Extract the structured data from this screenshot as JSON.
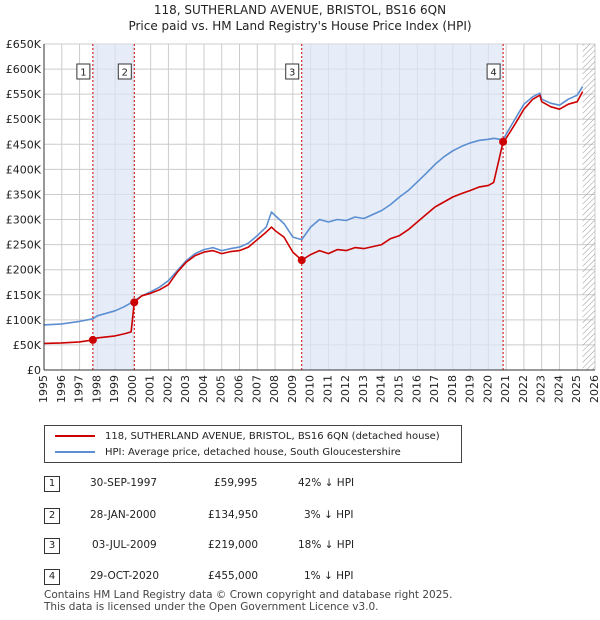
{
  "title_line1": "118, SUTHERLAND AVENUE, BRISTOL, BS16 6QN",
  "title_line2": "Price paid vs. HM Land Registry's House Price Index (HPI)",
  "colors": {
    "property": "#cc0000",
    "hpi": "#5b8fd1",
    "marker": "#cc0000",
    "shade": "#dde6f5",
    "grid": "#cccccc",
    "vline": "#cc0000"
  },
  "legend": {
    "property_label": "118, SUTHERLAND AVENUE, BRISTOL, BS16 6QN (detached house)",
    "hpi_label": "HPI: Average price, detached house, South Gloucestershire"
  },
  "sales": [
    {
      "num": "1",
      "date": "30-SEP-1997",
      "price": "£59,995",
      "hpi": "42% ↓ HPI"
    },
    {
      "num": "2",
      "date": "28-JAN-2000",
      "price": "£134,950",
      "hpi": "3% ↓ HPI"
    },
    {
      "num": "3",
      "date": "03-JUL-2009",
      "price": "£219,000",
      "hpi": "18% ↓ HPI"
    },
    {
      "num": "4",
      "date": "29-OCT-2020",
      "price": "£455,000",
      "hpi": "1% ↓ HPI"
    }
  ],
  "footer_line1": "Contains HM Land Registry data © Crown copyright and database right 2025.",
  "footer_line2": "This data is licensed under the Open Government Licence v3.0.",
  "chart_data": {
    "type": "line",
    "title": "118, SUTHERLAND AVENUE, BRISTOL, BS16 6QN",
    "subtitle": "Price paid vs. HM Land Registry's House Price Index (HPI)",
    "xlabel": "",
    "ylabel": "",
    "xlim": [
      1995,
      2026
    ],
    "ylim": [
      0,
      650000
    ],
    "y_ticks": [
      0,
      50000,
      100000,
      150000,
      200000,
      250000,
      300000,
      350000,
      400000,
      450000,
      500000,
      550000,
      600000,
      650000
    ],
    "y_tick_labels": [
      "£0",
      "£50K",
      "£100K",
      "£150K",
      "£200K",
      "£250K",
      "£300K",
      "£350K",
      "£400K",
      "£450K",
      "£500K",
      "£550K",
      "£600K",
      "£650K"
    ],
    "x_ticks": [
      1995,
      1996,
      1997,
      1998,
      1999,
      2000,
      2001,
      2002,
      2003,
      2004,
      2005,
      2006,
      2007,
      2008,
      2009,
      2010,
      2011,
      2012,
      2013,
      2014,
      2015,
      2016,
      2017,
      2018,
      2019,
      2020,
      2021,
      2022,
      2023,
      2024,
      2025,
      2026
    ],
    "x_tick_labels": [
      "1995",
      "1996",
      "1997",
      "1998",
      "1999",
      "2000",
      "2001",
      "2002",
      "2003",
      "2004",
      "2005",
      "2006",
      "2007",
      "2008",
      "2009",
      "2010",
      "2011",
      "2012",
      "2013",
      "2014",
      "2015",
      "2016",
      "2017",
      "2018",
      "2019",
      "2020",
      "2021",
      "2022",
      "2023",
      "2024",
      "2025",
      "2026"
    ],
    "grid": true,
    "legend_position": "below",
    "series": [
      {
        "name": "118, SUTHERLAND AVENUE, BRISTOL, BS16 6QN (detached house)",
        "x": [
          1995,
          1996,
          1997,
          1997.75,
          1998,
          1998.5,
          1999,
          1999.5,
          1999.9,
          2000.08,
          2000.5,
          2001,
          2001.5,
          2002,
          2002.5,
          2003,
          2003.5,
          2004,
          2004.5,
          2005,
          2005.5,
          2006,
          2006.5,
          2007,
          2007.5,
          2007.8,
          2008,
          2008.5,
          2009,
          2009.5,
          2010,
          2010.5,
          2011,
          2011.5,
          2012,
          2012.5,
          2013,
          2013.5,
          2014,
          2014.5,
          2015,
          2015.5,
          2016,
          2016.5,
          2017,
          2017.5,
          2018,
          2018.5,
          2019,
          2019.5,
          2020,
          2020.3,
          2020.83,
          2021,
          2021.5,
          2022,
          2022.5,
          2022.9,
          2023,
          2023.5,
          2024,
          2024.5,
          2025,
          2025.3
        ],
        "values": [
          53000,
          54000,
          56000,
          59995,
          64000,
          66000,
          68000,
          72000,
          76000,
          134950,
          148000,
          153000,
          160000,
          170000,
          195000,
          215000,
          228000,
          235000,
          238000,
          232000,
          236000,
          238000,
          245000,
          260000,
          275000,
          285000,
          278000,
          265000,
          235000,
          219000,
          230000,
          238000,
          232000,
          240000,
          238000,
          244000,
          242000,
          246000,
          250000,
          262000,
          268000,
          280000,
          295000,
          310000,
          325000,
          335000,
          345000,
          352000,
          358000,
          365000,
          368000,
          374000,
          455000,
          462000,
          490000,
          520000,
          540000,
          548000,
          535000,
          525000,
          520000,
          530000,
          535000,
          555000
        ]
      },
      {
        "name": "HPI: Average price, detached house, South Gloucestershire",
        "x": [
          1995,
          1996,
          1997,
          1997.75,
          1998,
          1998.5,
          1999,
          1999.5,
          2000,
          2000.5,
          2001,
          2001.5,
          2002,
          2002.5,
          2003,
          2003.5,
          2004,
          2004.5,
          2005,
          2005.5,
          2006,
          2006.5,
          2007,
          2007.5,
          2007.8,
          2008,
          2008.5,
          2009,
          2009.5,
          2010,
          2010.5,
          2011,
          2011.5,
          2012,
          2012.5,
          2013,
          2013.5,
          2014,
          2014.5,
          2015,
          2015.5,
          2016,
          2016.5,
          2017,
          2017.5,
          2018,
          2018.5,
          2019,
          2019.5,
          2020,
          2020.3,
          2020.83,
          2021,
          2021.5,
          2022,
          2022.5,
          2022.9,
          2023,
          2023.5,
          2024,
          2024.5,
          2025,
          2025.3
        ],
        "values": [
          90000,
          92000,
          97000,
          102000,
          108000,
          113000,
          118000,
          126000,
          136000,
          148000,
          156000,
          165000,
          178000,
          198000,
          218000,
          232000,
          240000,
          244000,
          238000,
          242000,
          245000,
          253000,
          268000,
          285000,
          315000,
          308000,
          292000,
          265000,
          260000,
          285000,
          300000,
          295000,
          300000,
          298000,
          305000,
          302000,
          310000,
          318000,
          330000,
          345000,
          358000,
          375000,
          392000,
          410000,
          425000,
          437000,
          446000,
          453000,
          458000,
          460000,
          462000,
          459000,
          470000,
          500000,
          530000,
          545000,
          552000,
          540000,
          532000,
          528000,
          540000,
          548000,
          565000
        ]
      }
    ],
    "sale_points": [
      {
        "label": "1",
        "x": 1997.75,
        "y": 59995
      },
      {
        "label": "2",
        "x": 2000.08,
        "y": 134950
      },
      {
        "label": "3",
        "x": 2009.5,
        "y": 219000
      },
      {
        "label": "4",
        "x": 2020.83,
        "y": 455000
      }
    ],
    "hatched_after": 2025.3
  }
}
